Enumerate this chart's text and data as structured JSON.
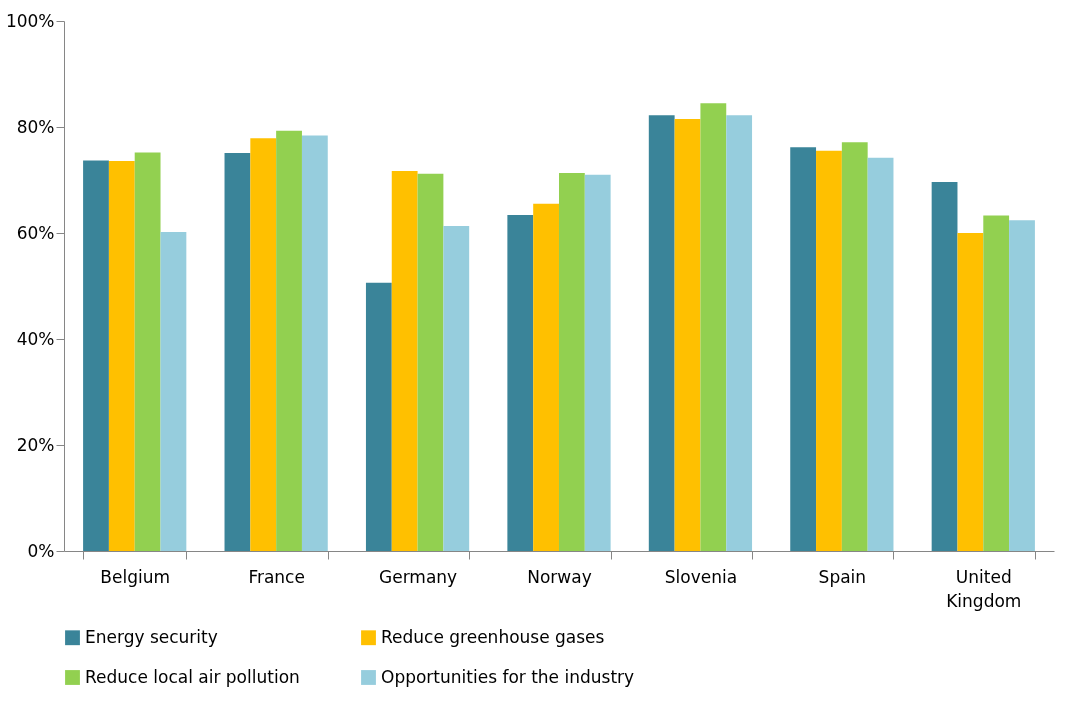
{
  "chart_data": {
    "type": "bar",
    "categories": [
      "Belgium",
      "France",
      "Germany",
      "Norway",
      "Slovenia",
      "Spain",
      "United Kingdom"
    ],
    "series": [
      {
        "name": "Energy security",
        "color": "#3a8499",
        "values": [
          73.7,
          75.1,
          50.6,
          63.4,
          82.2,
          76.2,
          69.6
        ]
      },
      {
        "name": "Reduce greenhouse gases",
        "color": "#ffc000",
        "values": [
          73.6,
          77.9,
          71.7,
          65.5,
          81.5,
          75.5,
          60.0
        ]
      },
      {
        "name": "Reduce local air pollution",
        "color": "#92d050",
        "values": [
          75.2,
          79.3,
          71.2,
          71.3,
          84.5,
          77.1,
          63.3
        ]
      },
      {
        "name": "Opportunities for the industry",
        "color": "#96cddd",
        "values": [
          60.2,
          78.4,
          61.3,
          71.0,
          82.2,
          74.2,
          62.4
        ]
      }
    ],
    "ylim": [
      0,
      100
    ],
    "yticks": [
      {
        "value": 0,
        "label": "0%"
      },
      {
        "value": 20,
        "label": "20%"
      },
      {
        "value": 40,
        "label": "40%"
      },
      {
        "value": 60,
        "label": "60%"
      },
      {
        "value": 80,
        "label": "80%"
      },
      {
        "value": 100,
        "label": "100%"
      }
    ],
    "grid": false,
    "legend": "bottom"
  }
}
